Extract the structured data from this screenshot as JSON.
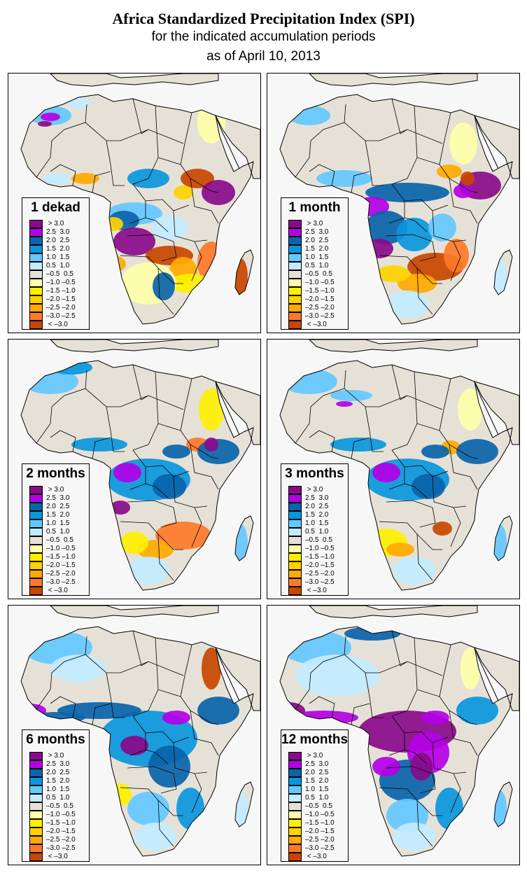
{
  "header": {
    "title": "Africa Standardized Precipitation Index (SPI)",
    "subtitle_line1": "for the indicated accumulation periods",
    "subtitle_line2": "as of April 10, 2013"
  },
  "legend_classes": [
    {
      "label": " > 3.0",
      "color": "#8a0a8a"
    },
    {
      "label": "2.5  3.0",
      "color": "#b400e6"
    },
    {
      "label": "2.0  2.5",
      "color": "#0a64aa"
    },
    {
      "label": "1.5  2.0",
      "color": "#0a96dc"
    },
    {
      "label": "1.0  1.5",
      "color": "#64c8ff"
    },
    {
      "label": "0.5  1.0",
      "color": "#c3ebff"
    },
    {
      "label": "–0.5  0.5",
      "color": "#e6e1d7"
    },
    {
      "label": "–1.0 –0.5",
      "color": "#ffffaa"
    },
    {
      "label": "–1.5 –1.0",
      "color": "#fff000"
    },
    {
      "label": "–2.0 –1.5",
      "color": "#ffd200"
    },
    {
      "label": "–2.5 –2.0",
      "color": "#ffaa00"
    },
    {
      "label": "–3.0 –2.5",
      "color": "#ff7828"
    },
    {
      "label": " < –3.0",
      "color": "#c84600"
    }
  ],
  "colors": {
    "ocean": "#f7f7f7",
    "land_normal": "#e6e1d7",
    "border": "#000000"
  },
  "panels": [
    {
      "label": "1 dekad"
    },
    {
      "label": "1 month"
    },
    {
      "label": "2 months"
    },
    {
      "label": "3 months"
    },
    {
      "label": "6 months"
    },
    {
      "label": "12 months"
    }
  ]
}
